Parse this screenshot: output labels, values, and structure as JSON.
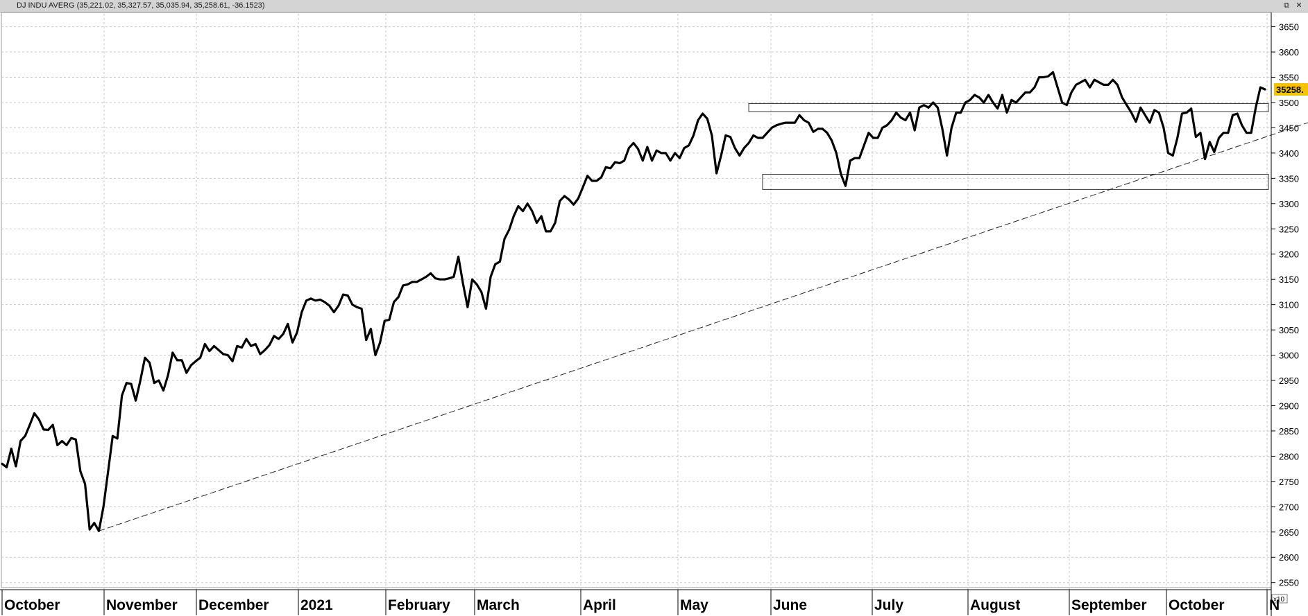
{
  "header": {
    "title": "DJ INDU AVERG (35,221.02, 35,327.57, 35,035.94, 35,258.61, -36.1523)",
    "window_buttons": [
      "⧉",
      "✕"
    ]
  },
  "chart_data": {
    "type": "line",
    "y_scale_label": "x10",
    "ylim": [
      2540,
      3670
    ],
    "y_ticks": [
      2550,
      2600,
      2650,
      2700,
      2750,
      2800,
      2850,
      2900,
      2950,
      3000,
      3050,
      3100,
      3150,
      3200,
      3250,
      3300,
      3350,
      3400,
      3450,
      3500,
      3550,
      3600,
      3650
    ],
    "last_value_label": "35258.",
    "last_value": 3526,
    "x_labels": [
      "October",
      "November",
      "December",
      "2021",
      "February",
      "March",
      "April",
      "May",
      "June",
      "July",
      "August",
      "September",
      "October",
      "N"
    ],
    "series": [
      {
        "values": [
          2785,
          2778,
          2815,
          2780,
          2830,
          2840,
          2862,
          2885,
          2873,
          2853,
          2852,
          2862,
          2822,
          2830,
          2822,
          2836,
          2833,
          2770,
          2745,
          2655,
          2668,
          2652,
          2700,
          2770,
          2840,
          2835,
          2920,
          2945,
          2943,
          2910,
          2950,
          2995,
          2985,
          2945,
          2950,
          2930,
          2960,
          3005,
          2990,
          2990,
          2965,
          2980,
          2988,
          2995,
          3022,
          3008,
          3018,
          3010,
          3002,
          3000,
          2988,
          3018,
          3015,
          3032,
          3018,
          3022,
          3002,
          3010,
          3020,
          3038,
          3032,
          3042,
          3062,
          3025,
          3045,
          3085,
          3108,
          3112,
          3108,
          3110,
          3105,
          3098,
          3085,
          3098,
          3120,
          3118,
          3100,
          3095,
          3092,
          3030,
          3052,
          3000,
          3025,
          3068,
          3070,
          3105,
          3115,
          3138,
          3140,
          3145,
          3145,
          3150,
          3155,
          3162,
          3152,
          3150,
          3150,
          3152,
          3155,
          3195,
          3142,
          3095,
          3150,
          3140,
          3125,
          3092,
          3155,
          3180,
          3185,
          3230,
          3248,
          3275,
          3295,
          3285,
          3300,
          3285,
          3262,
          3275,
          3245,
          3245,
          3262,
          3305,
          3315,
          3308,
          3298,
          3310,
          3332,
          3355,
          3345,
          3345,
          3352,
          3372,
          3370,
          3382,
          3380,
          3385,
          3410,
          3420,
          3408,
          3385,
          3412,
          3385,
          3405,
          3400,
          3400,
          3385,
          3400,
          3390,
          3410,
          3415,
          3435,
          3465,
          3478,
          3468,
          3435,
          3360,
          3395,
          3435,
          3432,
          3410,
          3395,
          3410,
          3420,
          3435,
          3430,
          3430,
          3440,
          3450,
          3455,
          3458,
          3460,
          3460,
          3460,
          3475,
          3465,
          3460,
          3442,
          3448,
          3448,
          3440,
          3425,
          3400,
          3358,
          3335,
          3385,
          3390,
          3390,
          3415,
          3440,
          3430,
          3430,
          3450,
          3455,
          3465,
          3480,
          3470,
          3465,
          3480,
          3445,
          3490,
          3495,
          3490,
          3500,
          3490,
          3448,
          3395,
          3450,
          3480,
          3480,
          3500,
          3505,
          3515,
          3510,
          3500,
          3515,
          3500,
          3488,
          3515,
          3480,
          3505,
          3500,
          3510,
          3520,
          3520,
          3530,
          3550,
          3550,
          3552,
          3560,
          3530,
          3500,
          3495,
          3520,
          3535,
          3540,
          3545,
          3530,
          3545,
          3540,
          3535,
          3535,
          3545,
          3535,
          3510,
          3495,
          3480,
          3462,
          3490,
          3475,
          3460,
          3485,
          3480,
          3450,
          3400,
          3395,
          3430,
          3478,
          3480,
          3488,
          3432,
          3440,
          3388,
          3422,
          3402,
          3430,
          3440,
          3440,
          3475,
          3478,
          3455,
          3440,
          3440,
          3490,
          3530,
          3526
        ]
      }
    ],
    "trendline": {
      "from": [
        21,
        2652
      ],
      "to": [
        330,
        3604
      ]
    },
    "zones": [
      {
        "from_index": 162,
        "to": "right-edge",
        "low": 3482,
        "high": 3498
      },
      {
        "from_index": 165,
        "to": "right-edge",
        "low": 3328,
        "high": 3358
      }
    ],
    "grid": true
  }
}
